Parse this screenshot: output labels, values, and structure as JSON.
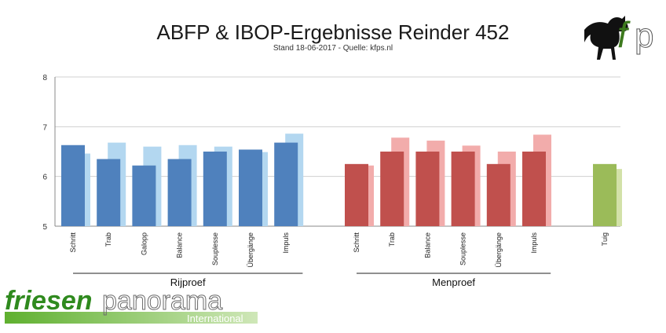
{
  "title": "ABFP & IBOP-Ergebnisse Reinder 452",
  "subtitle": "Stand 18-06-2017 - Quelle: kfps.nl",
  "brand": {
    "word1": "friesen",
    "word2": "panorama",
    "tag": "International"
  },
  "chart_data": {
    "type": "bar",
    "ylim": [
      5,
      8
    ],
    "yticks": [
      5,
      6,
      7,
      8
    ],
    "grid": true,
    "groups": [
      {
        "label": "Rijproef",
        "colors": {
          "primary": "#4f81bd",
          "secondary": "#b3d7f0"
        },
        "categories": [
          "Schritt",
          "Trab",
          "Galopp",
          "Balance",
          "Souplesse",
          "Übergänge",
          "Impuls"
        ],
        "series": [
          {
            "values": [
              6.63,
              6.35,
              6.22,
              6.35,
              6.5,
              6.54,
              6.68
            ]
          },
          {
            "values": [
              6.46,
              6.68,
              6.6,
              6.63,
              6.6,
              6.49,
              6.86
            ]
          }
        ]
      },
      {
        "label": "Menproef",
        "colors": {
          "primary": "#c0504d",
          "secondary": "#f2acab"
        },
        "categories": [
          "Schritt",
          "Trab",
          "Balance",
          "Souplesse",
          "Übergänge",
          "Impuls"
        ],
        "series": [
          {
            "values": [
              6.25,
              6.5,
              6.5,
              6.5,
              6.25,
              6.5
            ]
          },
          {
            "values": [
              6.22,
              6.78,
              6.72,
              6.62,
              6.5,
              6.84
            ]
          }
        ]
      },
      {
        "label": "",
        "colors": {
          "primary": "#9bbb59",
          "secondary": "#d2e1a8"
        },
        "categories": [
          "Tuig"
        ],
        "series": [
          {
            "values": [
              6.25
            ]
          },
          {
            "values": [
              6.15
            ]
          }
        ]
      }
    ]
  }
}
